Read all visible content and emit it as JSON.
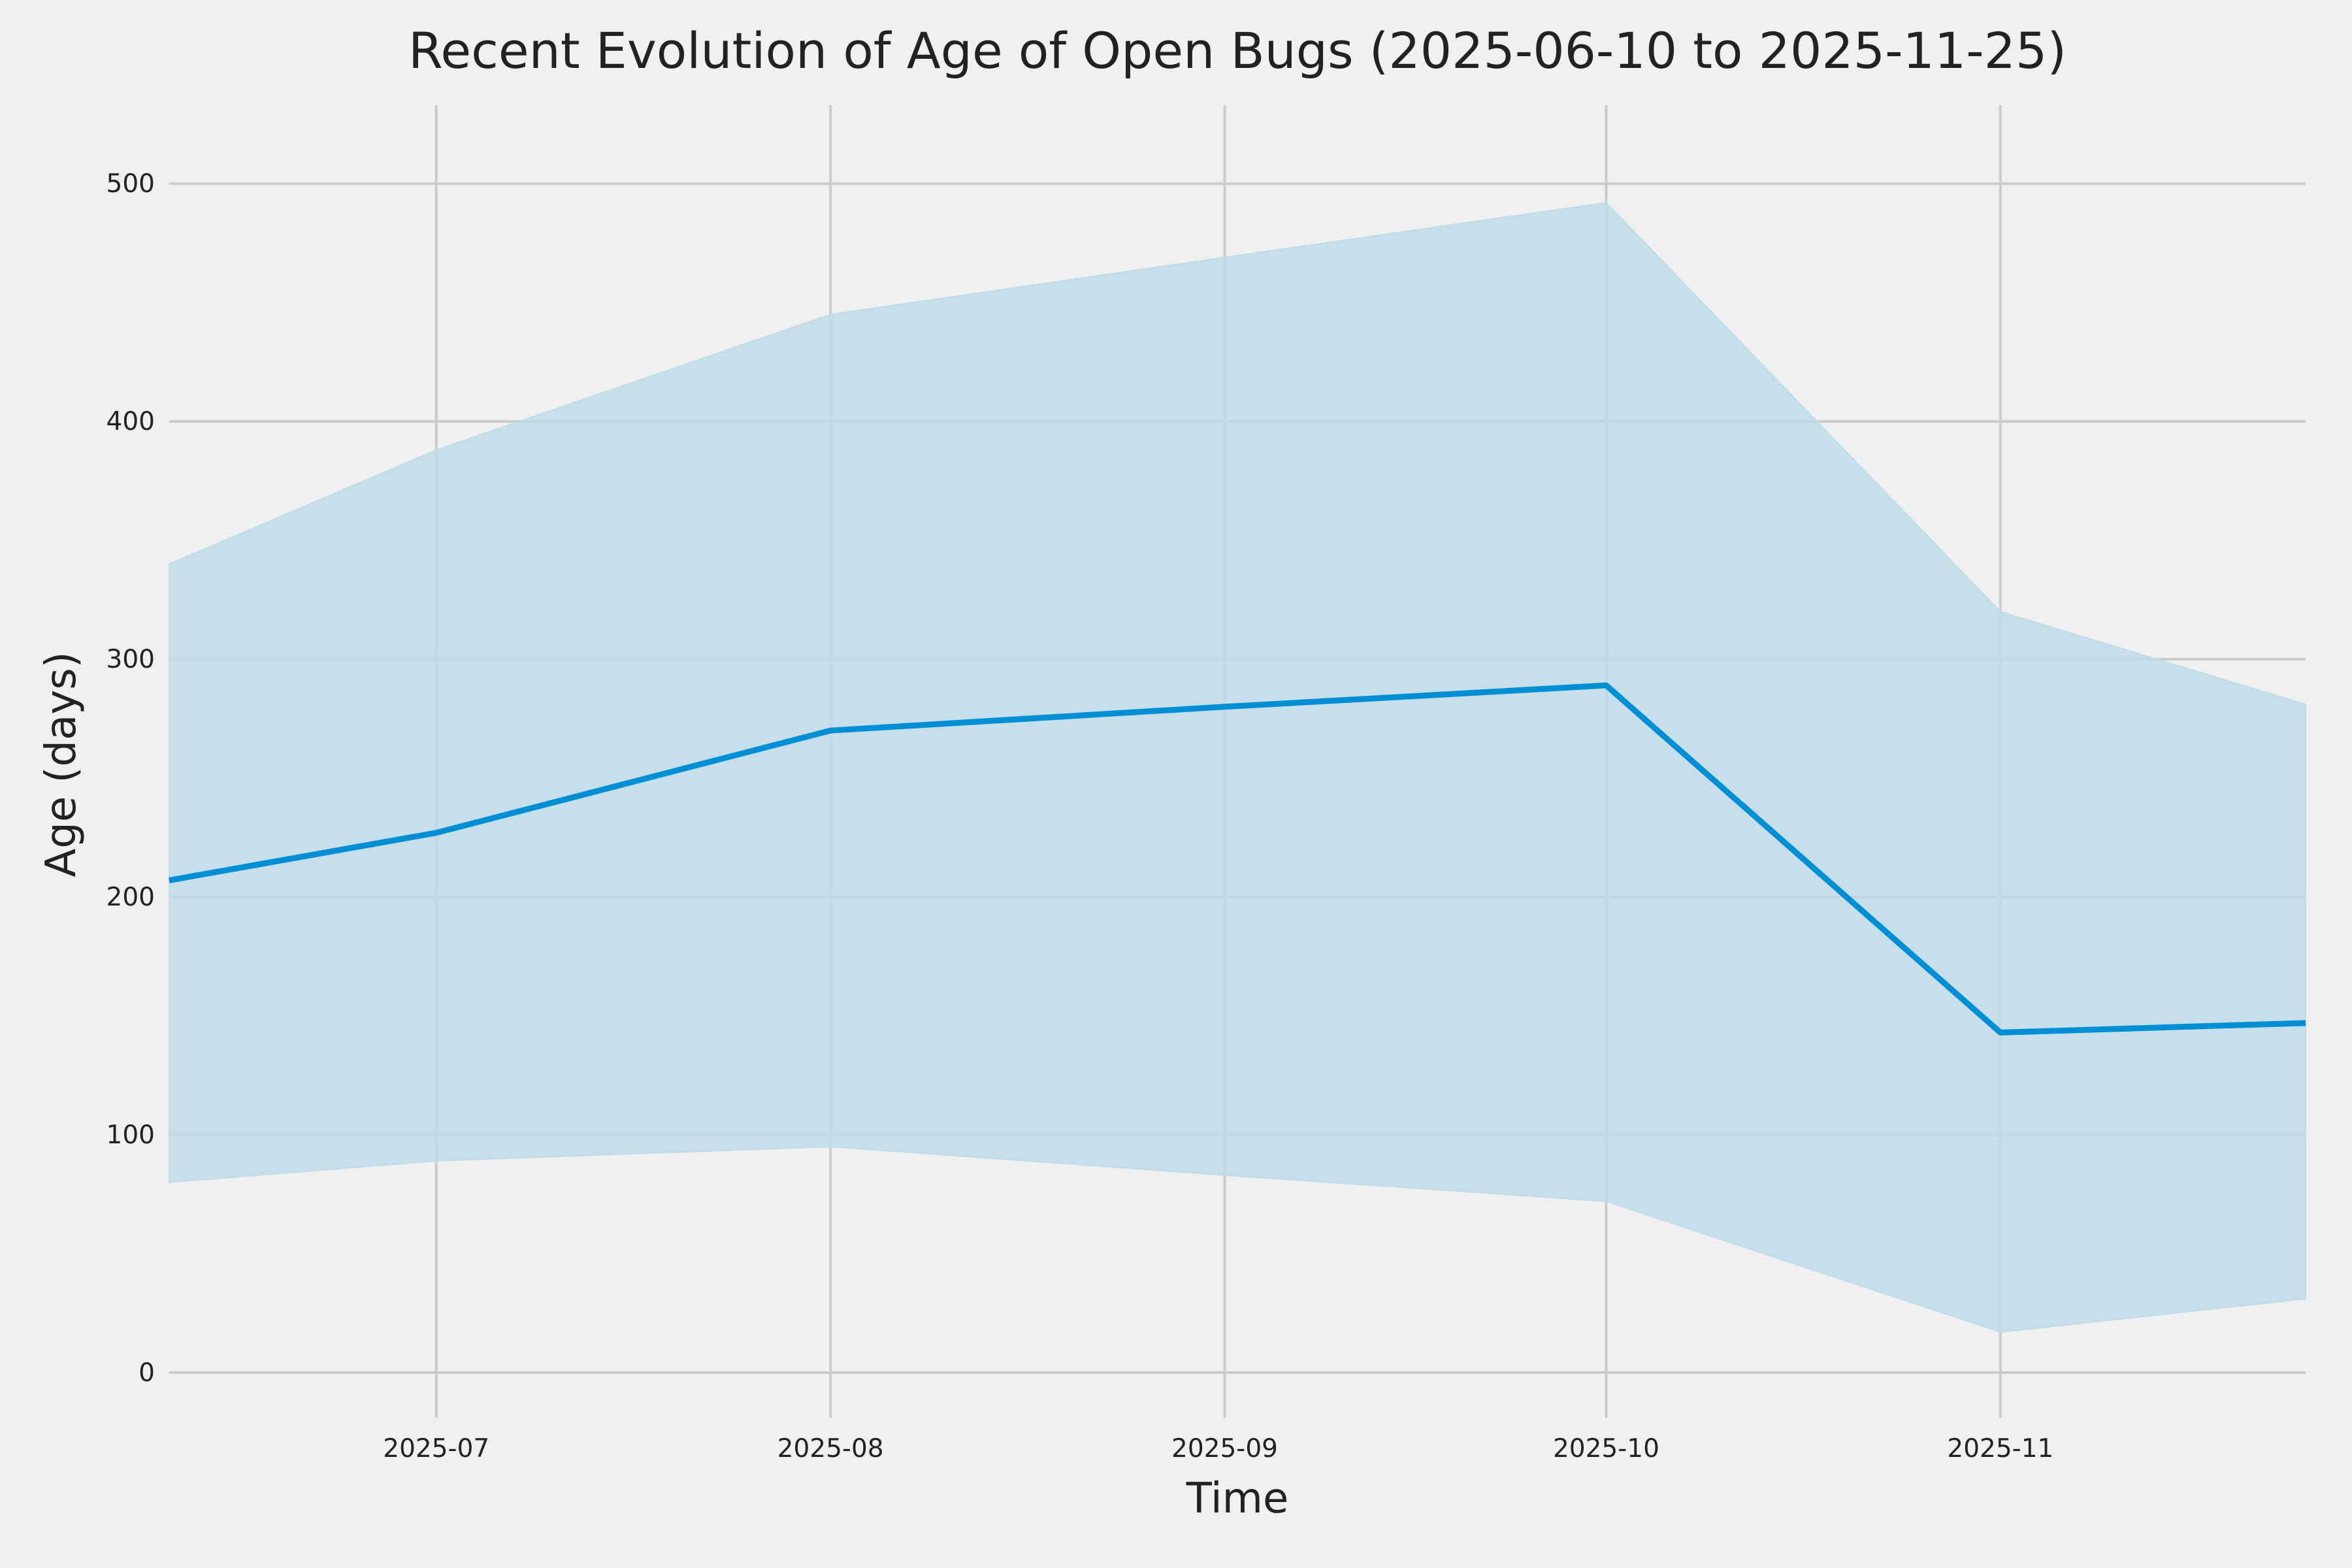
{
  "chart_data": {
    "type": "line",
    "title": "Recent Evolution of Age of Open Bugs (2025-06-10 to 2025-11-25)",
    "x_label": "Time",
    "y_label": "Age (days)",
    "x": [
      "2025-06-10",
      "2025-07",
      "2025-08",
      "2025-09",
      "2025-10",
      "2025-11",
      "2025-11-25"
    ],
    "values": [
      207,
      227,
      270,
      280,
      289,
      143,
      147
    ],
    "upper": [
      340,
      388,
      445,
      469,
      492,
      320,
      281
    ],
    "lower": [
      80,
      89,
      95,
      83,
      72,
      17,
      31
    ],
    "color": "#008fd5",
    "band_color": "#c0dce9",
    "xlim": [
      "2025-06-10",
      "2025-11-25"
    ],
    "xticks": [
      "2025-07",
      "2025-08",
      "2025-09",
      "2025-10",
      "2025-11"
    ],
    "ylim": [
      -19,
      533
    ],
    "yticks": [
      0,
      100,
      200,
      300,
      400,
      500
    ],
    "grid": true
  }
}
